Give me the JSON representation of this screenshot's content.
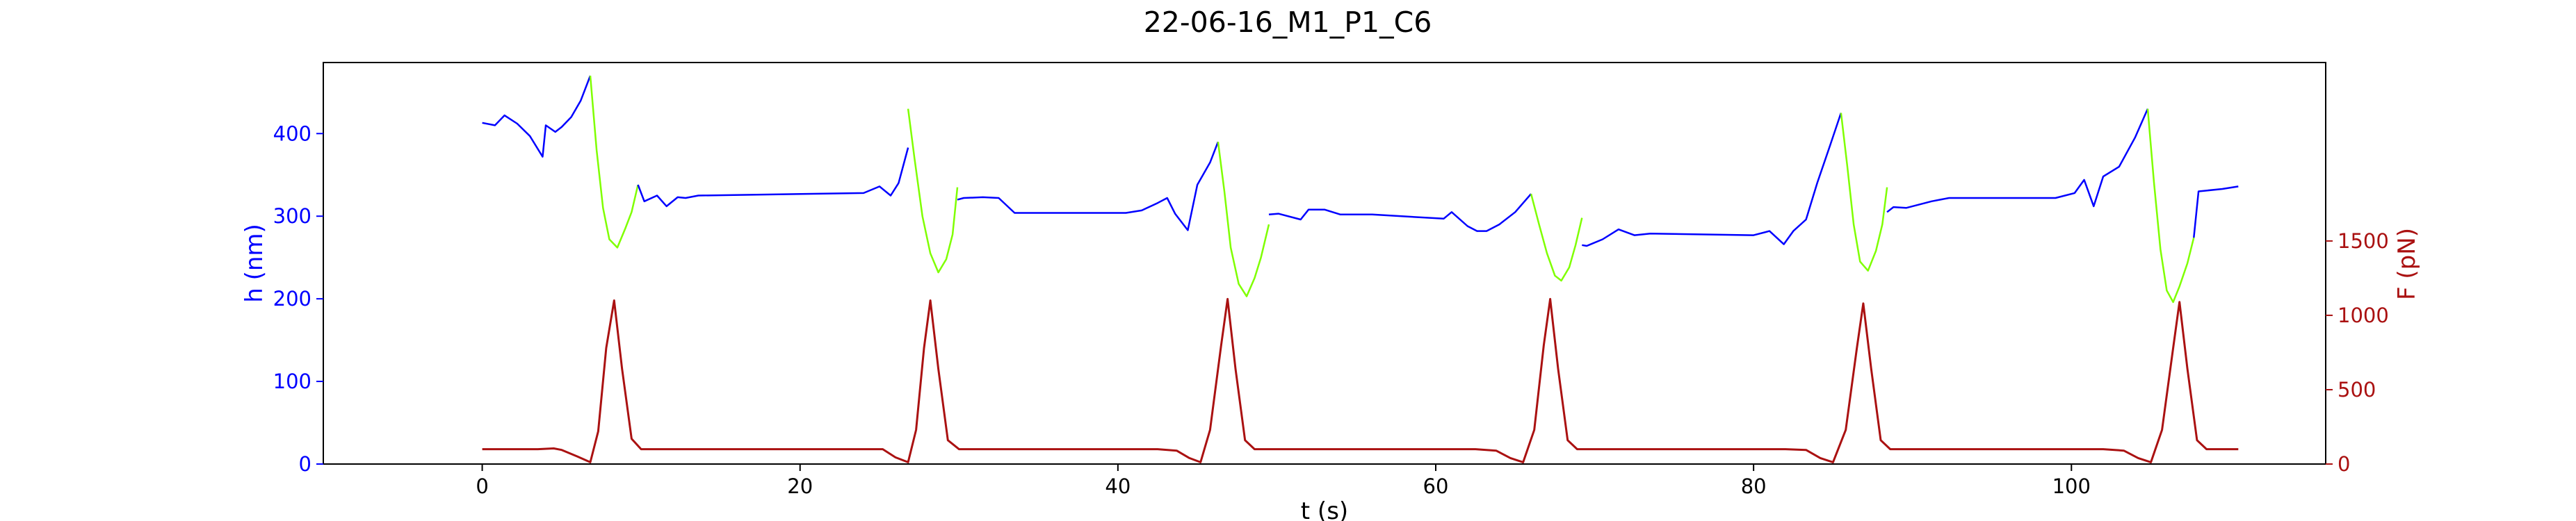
{
  "chart_data": {
    "type": "line",
    "title": "22-06-16_M1_P1_C6",
    "xlabel": "t (s)",
    "ylabel": "h (nm)",
    "y2label": "F (pN)",
    "xlim": [
      -10,
      116
    ],
    "ylim": [
      0,
      486
    ],
    "y2lim": [
      0,
      2700
    ],
    "x_ticks": [
      0,
      20,
      40,
      60,
      80,
      100
    ],
    "y_ticks": [
      0,
      100,
      200,
      300,
      400
    ],
    "y2_ticks": [
      0,
      500,
      1000,
      1500
    ],
    "grid": false,
    "legend": "none",
    "colors": {
      "h_baseline": "#0000ff",
      "h_compression": "#7fff00",
      "force": "#aa1111",
      "left_axis": "#0000ff",
      "right_axis": "#aa1111"
    },
    "series": [
      {
        "axis": "left",
        "x": [
          0.0,
          0.8,
          1.4,
          2.2,
          3.0,
          3.8,
          4.0,
          4.6,
          5.0,
          5.6,
          6.2,
          6.8
        ],
        "y": [
          413,
          410,
          422,
          412,
          397,
          372,
          410,
          402,
          408,
          420,
          440,
          470
        ]
      },
      {
        "axis": "left",
        "x": [
          6.8,
          7.2,
          7.6,
          8.0,
          8.5,
          9.0,
          9.4,
          9.8
        ],
        "y": [
          470,
          380,
          310,
          272,
          262,
          285,
          305,
          338
        ]
      },
      {
        "axis": "left",
        "x": [
          9.8,
          10.2,
          11.0,
          11.6,
          12.3,
          12.8,
          13.6,
          24.0,
          25.0,
          25.7,
          26.2,
          26.8
        ],
        "y": [
          338,
          318,
          325,
          312,
          323,
          322,
          325,
          328,
          336,
          325,
          340,
          383
        ]
      },
      {
        "axis": "left",
        "x": [
          26.8,
          27.2,
          27.7,
          28.2,
          28.7,
          29.2,
          29.6,
          29.9
        ],
        "y": [
          430,
          370,
          300,
          255,
          232,
          248,
          278,
          335
        ]
      },
      {
        "axis": "left",
        "x": [
          29.9,
          30.3,
          31.5,
          32.5,
          33.5,
          40.5,
          41.5,
          42.5,
          43.1,
          43.6,
          44.4,
          45.0,
          45.8,
          46.3
        ],
        "y": [
          320,
          322,
          323,
          322,
          304,
          304,
          307,
          316,
          322,
          303,
          283,
          338,
          365,
          390
        ]
      },
      {
        "axis": "left",
        "x": [
          46.3,
          46.7,
          47.1,
          47.6,
          48.1,
          48.6,
          49.0,
          49.5
        ],
        "y": [
          390,
          330,
          262,
          218,
          203,
          225,
          250,
          290
        ]
      },
      {
        "axis": "left",
        "x": [
          49.5,
          50.1,
          51.5,
          52.0,
          53.0,
          54.0,
          56.0,
          60.5,
          61.0,
          62.0,
          62.6,
          63.2,
          64.0,
          65.0,
          66.0
        ],
        "y": [
          302,
          303,
          296,
          308,
          308,
          302,
          302,
          297,
          305,
          288,
          282,
          282,
          290,
          305,
          327
        ]
      },
      {
        "axis": "left",
        "x": [
          66.0,
          66.5,
          67.0,
          67.5,
          67.9,
          68.4,
          68.8,
          69.2
        ],
        "y": [
          327,
          290,
          255,
          228,
          222,
          238,
          265,
          298
        ]
      },
      {
        "axis": "left",
        "x": [
          69.2,
          69.5,
          70.5,
          71.5,
          72.5,
          73.5,
          80.0,
          81.0,
          81.9,
          82.5,
          83.3,
          84.0,
          84.8,
          85.5
        ],
        "y": [
          265,
          264,
          272,
          284,
          277,
          279,
          277,
          282,
          266,
          282,
          296,
          340,
          385,
          425
        ]
      },
      {
        "axis": "left",
        "x": [
          85.5,
          85.9,
          86.3,
          86.7,
          87.2,
          87.7,
          88.1,
          88.4
        ],
        "y": [
          425,
          360,
          290,
          245,
          234,
          258,
          290,
          335
        ]
      },
      {
        "axis": "left",
        "x": [
          88.4,
          88.8,
          89.6,
          90.4,
          91.2,
          92.3,
          99.0,
          100.2,
          100.8,
          101.4,
          102.0,
          103.0,
          104.0,
          104.8
        ],
        "y": [
          305,
          311,
          310,
          314,
          318,
          322,
          322,
          328,
          344,
          312,
          348,
          360,
          395,
          430
        ]
      },
      {
        "axis": "left",
        "x": [
          104.8,
          105.2,
          105.6,
          106.0,
          106.4,
          106.8,
          107.3,
          107.7
        ],
        "y": [
          430,
          340,
          260,
          210,
          196,
          215,
          243,
          274
        ]
      },
      {
        "axis": "left",
        "x": [
          107.7,
          108.0,
          109.5,
          110.5
        ],
        "y": [
          274,
          330,
          333,
          336
        ]
      },
      {
        "axis": "right",
        "x": [
          0.0,
          3.5,
          4.5,
          5.0,
          6.0,
          6.8,
          7.3,
          7.8,
          8.3,
          8.8,
          9.4,
          10.0,
          24.0,
          25.2,
          26.0,
          26.8,
          27.3,
          27.8,
          28.2,
          28.7,
          29.3,
          30.0,
          42.5,
          43.7,
          44.5,
          45.2,
          45.8,
          46.5,
          46.9,
          47.4,
          48.0,
          48.6,
          49.4,
          62.5,
          63.8,
          64.7,
          65.5,
          66.2,
          66.8,
          67.2,
          67.7,
          68.3,
          68.9,
          69.6,
          82.0,
          83.3,
          84.2,
          85.0,
          85.8,
          86.5,
          86.9,
          87.4,
          88.0,
          88.6,
          89.3,
          102.0,
          103.3,
          104.2,
          105.0,
          105.7,
          106.4,
          106.8,
          107.3,
          107.9,
          108.5,
          110.5
        ],
        "y": [
          100,
          100,
          105,
          95,
          50,
          12,
          220,
          780,
          1100,
          640,
          170,
          100,
          100,
          100,
          45,
          12,
          230,
          780,
          1100,
          640,
          160,
          100,
          100,
          90,
          40,
          12,
          230,
          800,
          1110,
          640,
          160,
          100,
          100,
          100,
          90,
          40,
          12,
          230,
          800,
          1110,
          640,
          160,
          100,
          100,
          100,
          95,
          40,
          12,
          230,
          780,
          1080,
          640,
          160,
          100,
          100,
          100,
          90,
          40,
          12,
          230,
          780,
          1090,
          640,
          160,
          100,
          100
        ]
      }
    ]
  }
}
